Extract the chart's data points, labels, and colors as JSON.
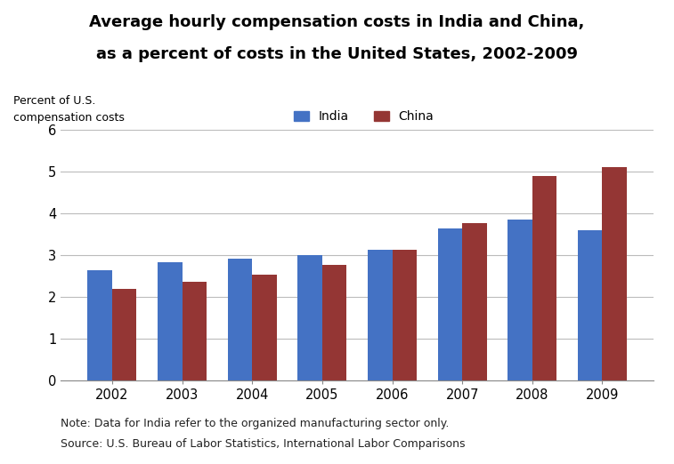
{
  "title_line1": "Average hourly compensation costs in India and China,",
  "title_line2": "as a percent of costs in the United States, 2002-2009",
  "ylabel_line1": "Percent of U.S.",
  "ylabel_line2": "compensation costs",
  "years": [
    2002,
    2003,
    2004,
    2005,
    2006,
    2007,
    2008,
    2009
  ],
  "india": [
    2.65,
    2.84,
    2.92,
    3.01,
    3.12,
    3.64,
    3.86,
    3.6
  ],
  "china": [
    2.19,
    2.36,
    2.53,
    2.76,
    3.12,
    3.77,
    4.9,
    5.11
  ],
  "india_color": "#4472C4",
  "china_color": "#943634",
  "ylim": [
    0,
    6
  ],
  "yticks": [
    0,
    1,
    2,
    3,
    4,
    5,
    6
  ],
  "note_line1": "Note: Data for India refer to the organized manufacturing sector only.",
  "note_line2": "Source: U.S. Bureau of Labor Statistics, International Labor Comparisons",
  "background_color": "#FFFFFF",
  "bar_width": 0.35,
  "legend_india": "India",
  "legend_china": "China"
}
